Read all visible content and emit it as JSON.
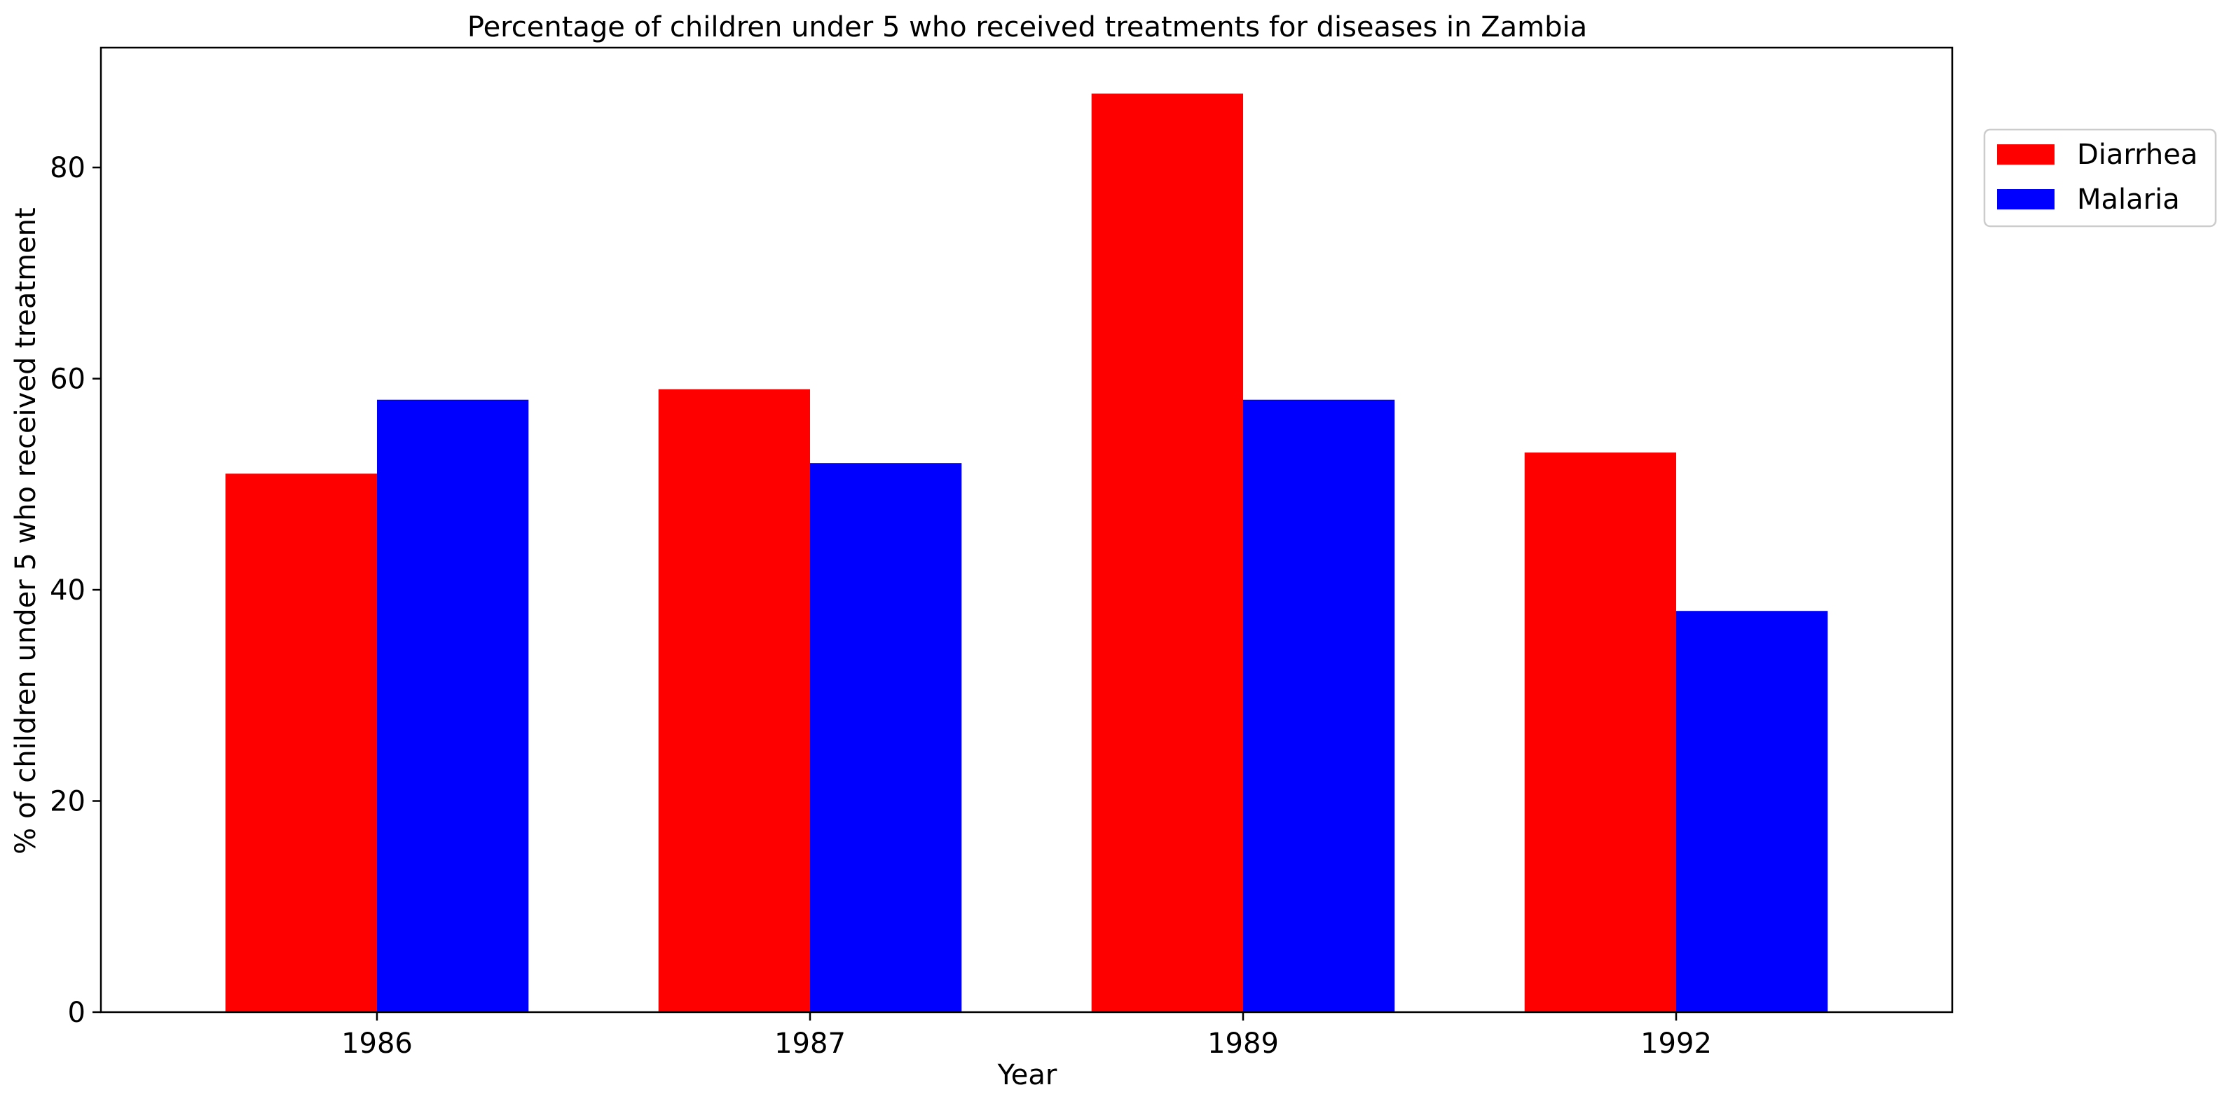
{
  "chart_data": {
    "type": "bar",
    "title": "Percentage of children under 5 who received treatments for diseases in Zambia",
    "xlabel": "Year",
    "ylabel": "% of children under 5 who received treatment",
    "categories": [
      "1986",
      "1987",
      "1989",
      "1992"
    ],
    "series": [
      {
        "name": "Diarrhea",
        "color": "#ff0000",
        "values": [
          51,
          59,
          87,
          53
        ]
      },
      {
        "name": "Malaria",
        "color": "#0000ff",
        "values": [
          58,
          52,
          58,
          38
        ]
      }
    ],
    "ylim": [
      0,
      91.35
    ],
    "yticks": [
      0,
      20,
      40,
      60,
      80
    ],
    "grid": false,
    "legend_position": "outside-top-right"
  }
}
